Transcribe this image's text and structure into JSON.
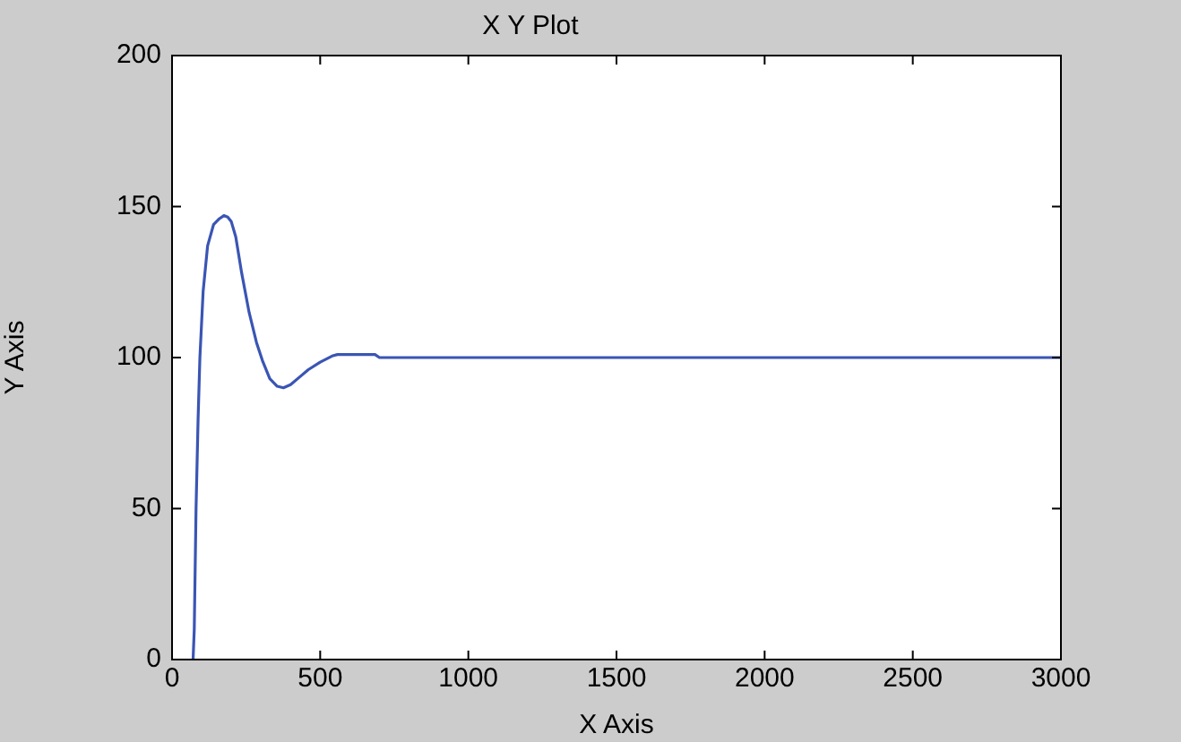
{
  "chart_data": {
    "type": "line",
    "title": "X Y Plot",
    "xlabel": "X Axis",
    "ylabel": "Y Axis",
    "series": [
      {
        "color": "#3a55b4",
        "x": [
          71,
          75,
          81,
          88,
          94,
          105,
          120,
          140,
          160,
          175,
          188,
          200,
          215,
          235,
          260,
          285,
          305,
          330,
          355,
          376,
          400,
          430,
          460,
          500,
          540,
          558,
          685,
          700,
          3000
        ],
        "values": [
          0,
          10,
          50,
          80,
          100,
          122,
          137,
          144,
          146,
          147,
          146.5,
          145,
          140,
          128,
          115,
          105,
          99,
          93,
          90.5,
          90,
          91,
          93.5,
          96,
          98.5,
          100.5,
          101,
          101,
          100,
          100
        ]
      }
    ],
    "xlim": [
      0,
      3000
    ],
    "xticks": [
      0,
      500,
      1000,
      1500,
      2000,
      2500,
      3000
    ],
    "ylim": [
      0,
      200
    ],
    "yticks": [
      0,
      50,
      100,
      150,
      200
    ],
    "grid": false,
    "legend": false,
    "marker": "none",
    "line_style": "solid"
  }
}
